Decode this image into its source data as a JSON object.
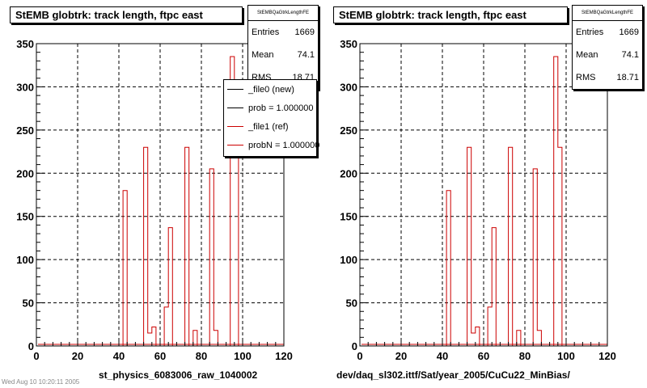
{
  "plots": [
    {
      "title": "StEMB globtrk: track length, ftpc east",
      "stats": {
        "name": "StEMBQaGtrkLengthFE",
        "entries_label": "Entries",
        "entries": "1669",
        "mean_label": "Mean",
        "mean": "74.1",
        "rms_label": "RMS",
        "rms": "18.71"
      },
      "file_label": "st_physics_6083006_raw_1040002",
      "legend": [
        {
          "label": "_file0 (new)",
          "color": "#000000"
        },
        {
          "label": "prob = 1.000000",
          "color": "#000000"
        },
        {
          "label": "_file1 (ref)",
          "color": "#cc0000"
        },
        {
          "label": "probN = 1.000000",
          "color": "#cc0000"
        }
      ]
    },
    {
      "title": "StEMB globtrk: track length, ftpc east",
      "stats": {
        "name": "StEMBQaGtrkLengthFE",
        "entries_label": "Entries",
        "entries": "1669",
        "mean_label": "Mean",
        "mean": "74.1",
        "rms_label": "RMS",
        "rms": "18.71"
      },
      "file_label": "dev/daq_sl302.ittf/Sat/year_2005/CuCu22_MinBias/"
    }
  ],
  "footer": "Wed Aug 10 10:20:11 2005",
  "chart_data": [
    {
      "type": "bar",
      "title": "StEMB globtrk: track length, ftpc east",
      "xlim": [
        0,
        120
      ],
      "ylim": [
        0,
        350
      ],
      "xticks": [
        0,
        20,
        40,
        60,
        80,
        100,
        120
      ],
      "yticks": [
        0,
        50,
        100,
        150,
        200,
        250,
        300,
        350
      ],
      "grid": true,
      "bin_width": 2,
      "series": [
        {
          "name": "_file1 (ref)",
          "color": "#cc0000",
          "bins": [
            [
              42,
              180
            ],
            [
              44,
              0
            ],
            [
              46,
              0
            ],
            [
              48,
              0
            ],
            [
              50,
              0
            ],
            [
              52,
              230
            ],
            [
              54,
              15
            ],
            [
              56,
              22
            ],
            [
              58,
              0
            ],
            [
              60,
              0
            ],
            [
              62,
              45
            ],
            [
              64,
              137
            ],
            [
              66,
              0
            ],
            [
              68,
              0
            ],
            [
              70,
              0
            ],
            [
              72,
              230
            ],
            [
              74,
              0
            ],
            [
              76,
              18
            ],
            [
              78,
              0
            ],
            [
              80,
              0
            ],
            [
              82,
              0
            ],
            [
              84,
              205
            ],
            [
              86,
              18
            ],
            [
              88,
              0
            ],
            [
              90,
              0
            ],
            [
              92,
              0
            ],
            [
              94,
              335
            ],
            [
              96,
              230
            ],
            [
              98,
              0
            ]
          ]
        }
      ],
      "baseline_range": [
        0,
        120
      ]
    },
    {
      "type": "bar",
      "title": "StEMB globtrk: track length, ftpc east",
      "xlim": [
        0,
        120
      ],
      "ylim": [
        0,
        350
      ],
      "xticks": [
        0,
        20,
        40,
        60,
        80,
        100,
        120
      ],
      "yticks": [
        0,
        50,
        100,
        150,
        200,
        250,
        300,
        350
      ],
      "grid": true,
      "bin_width": 2,
      "series": [
        {
          "name": "_file1 (ref)",
          "color": "#cc0000",
          "bins": [
            [
              42,
              180
            ],
            [
              44,
              0
            ],
            [
              46,
              0
            ],
            [
              48,
              0
            ],
            [
              50,
              0
            ],
            [
              52,
              230
            ],
            [
              54,
              15
            ],
            [
              56,
              22
            ],
            [
              58,
              0
            ],
            [
              60,
              0
            ],
            [
              62,
              45
            ],
            [
              64,
              137
            ],
            [
              66,
              0
            ],
            [
              68,
              0
            ],
            [
              70,
              0
            ],
            [
              72,
              230
            ],
            [
              74,
              0
            ],
            [
              76,
              18
            ],
            [
              78,
              0
            ],
            [
              80,
              0
            ],
            [
              82,
              0
            ],
            [
              84,
              205
            ],
            [
              86,
              18
            ],
            [
              88,
              0
            ],
            [
              90,
              0
            ],
            [
              92,
              0
            ],
            [
              94,
              335
            ],
            [
              96,
              230
            ],
            [
              98,
              0
            ]
          ]
        }
      ],
      "baseline_range": [
        0,
        120
      ]
    }
  ]
}
